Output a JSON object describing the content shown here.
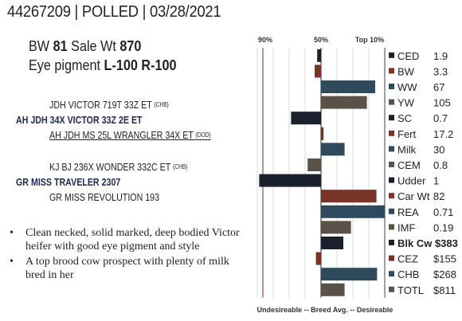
{
  "header": {
    "reg": "44267209",
    "sep1": " | ",
    "status": "POLLED",
    "sep2": " | ",
    "date": "03/28/2021"
  },
  "summary": {
    "bw_label": "BW ",
    "bw_value": "81",
    "sale_label": "Sale Wt ",
    "sale_value": "870",
    "eye_label": "Eye pigment ",
    "eye_value": "L-100  R-100"
  },
  "pedigree": [
    {
      "text": "JDH VICTOR 719T 33Z ET",
      "tag": "{CHB}"
    },
    {
      "text": "AH JDH 34X VICTOR 33Z 2E ET",
      "tag": ""
    },
    {
      "text": "AH JDH MS 25L WRANGLER 34X ET",
      "tag": "{DOD}"
    },
    {
      "text": "KJ BJ 236X WONDER 332C ET",
      "tag": "{CHB}"
    },
    {
      "text": "GR MISS TRAVELER 2307",
      "tag": ""
    },
    {
      "text": "GR MISS REVOLUTION 193",
      "tag": ""
    }
  ],
  "notes": [
    "Clean necked, solid marked, deep bodied Victor heifer with good eye pigment and style",
    "A top brood cow prospect with plenty of milk bred in her"
  ],
  "chart_data": {
    "type": "bar",
    "orientation": "horizontal",
    "axis_top_labels": [
      "90%",
      "50%",
      "Top 10%"
    ],
    "footer": "Undesireable -- Breed Avg. --  Desireable",
    "xlim": [
      -100,
      100
    ],
    "scale_note": "bars are relative to breed average (0), negative = toward undesirable",
    "traits": [
      {
        "name": "CED",
        "value": "1.9",
        "bar": -6,
        "color": "#1b1f2e"
      },
      {
        "name": "BW",
        "value": "3.3",
        "bar": -10,
        "color": "#7a3328"
      },
      {
        "name": "WW",
        "value": "67",
        "bar": 85,
        "color": "#2f4a5c"
      },
      {
        "name": "YW",
        "value": "105",
        "bar": 72,
        "color": "#5a5147"
      },
      {
        "name": "SC",
        "value": "0.7",
        "bar": -47,
        "color": "#1b1f2e"
      },
      {
        "name": "Fert",
        "value": "17.2",
        "bar": 4,
        "color": "#7a3328"
      },
      {
        "name": "Milk",
        "value": "30",
        "bar": 37,
        "color": "#2f4a5c"
      },
      {
        "name": "CEM",
        "value": "0.8",
        "bar": -21,
        "color": "#5a5147"
      },
      {
        "name": "Udder",
        "value": "1",
        "bar": -97,
        "color": "#1b1f2e"
      },
      {
        "name": "Car Wt",
        "value": "82",
        "bar": 87,
        "color": "#7a3328"
      },
      {
        "name": "REA",
        "value": "0.71",
        "bar": 100,
        "color": "#2f4a5c"
      },
      {
        "name": "IMF",
        "value": "0.19",
        "bar": 47,
        "color": "#5a5147"
      },
      {
        "name": "Blk Cw $383",
        "value": "",
        "bar": 35,
        "color": "#1b1f2e",
        "bold": true
      },
      {
        "name": "CEZ",
        "value": "$155",
        "bar": -8,
        "color": "#7a3328"
      },
      {
        "name": "CHB",
        "value": "$268",
        "bar": 88,
        "color": "#2f4a5c"
      },
      {
        "name": "TOTL",
        "value": "$811",
        "bar": 37,
        "color": "#5a5147"
      }
    ]
  }
}
